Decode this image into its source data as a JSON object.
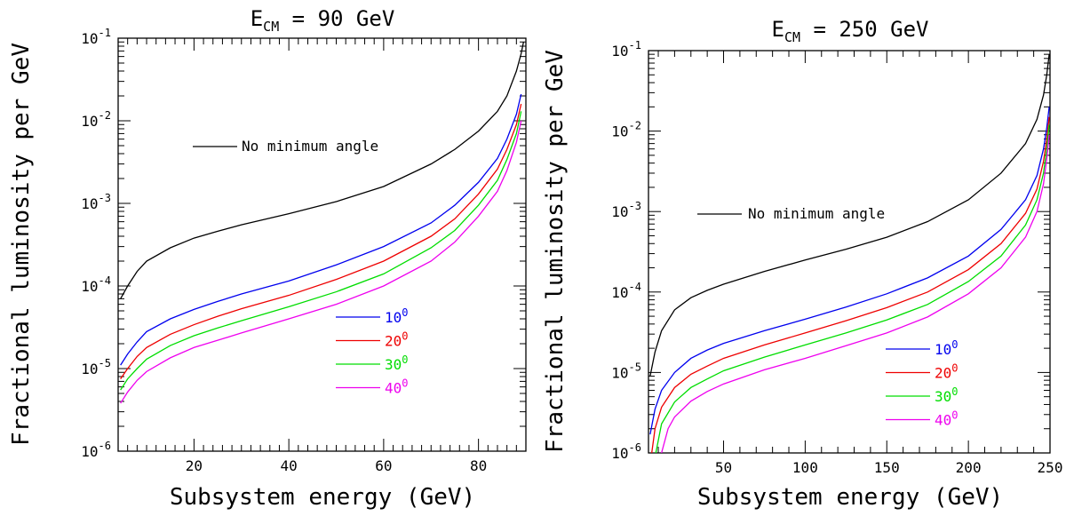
{
  "chart_data": [
    {
      "type": "line",
      "title_main": "E",
      "title_sub": "CM",
      "title_rest": " = 90 GeV",
      "xlabel": "Subsystem energy (GeV)",
      "ylabel": "Fractional luminosity per GeV",
      "xlim": [
        4,
        90
      ],
      "ylim": [
        1e-06,
        0.1
      ],
      "yscale": "log",
      "x_ticks": [
        20,
        40,
        60,
        80
      ],
      "y_ticks": [
        {
          "mantissa": "10",
          "exponent": "-6"
        },
        {
          "mantissa": "10",
          "exponent": "-5"
        },
        {
          "mantissa": "10",
          "exponent": "-4"
        },
        {
          "mantissa": "10",
          "exponent": "-3"
        },
        {
          "mantissa": "10",
          "exponent": "-2"
        },
        {
          "mantissa": "10",
          "exponent": "-1"
        }
      ],
      "legend_position": "lower-center",
      "series": [
        {
          "name": "No minimum angle",
          "color": "#000000",
          "x": [
            4.5,
            6,
            8,
            10,
            15,
            20,
            25,
            30,
            40,
            50,
            60,
            70,
            75,
            80,
            84,
            86,
            88,
            89,
            89.5
          ],
          "y": [
            7e-05,
            0.0001,
            0.00015,
            0.0002,
            0.00029,
            0.00038,
            0.00046,
            0.00055,
            0.00075,
            0.00105,
            0.0016,
            0.003,
            0.0045,
            0.0075,
            0.013,
            0.02,
            0.04,
            0.065,
            0.09
          ]
        },
        {
          "name": "10",
          "superscript": "0",
          "color": "#0000ee",
          "x": [
            4.5,
            6,
            8,
            10,
            15,
            20,
            25,
            30,
            40,
            50,
            60,
            70,
            75,
            80,
            84,
            86,
            88,
            89
          ],
          "y": [
            1.1e-05,
            1.5e-05,
            2.1e-05,
            2.8e-05,
            4e-05,
            5.2e-05,
            6.5e-05,
            8e-05,
            0.000115,
            0.00018,
            0.0003,
            0.00058,
            0.00095,
            0.0018,
            0.0035,
            0.006,
            0.012,
            0.021
          ]
        },
        {
          "name": "20",
          "superscript": "0",
          "color": "#ee0000",
          "x": [
            4.5,
            6,
            8,
            10,
            15,
            20,
            25,
            30,
            40,
            50,
            60,
            70,
            75,
            80,
            84,
            86,
            88,
            89
          ],
          "y": [
            7.5e-06,
            1e-05,
            1.4e-05,
            1.8e-05,
            2.6e-05,
            3.4e-05,
            4.3e-05,
            5.3e-05,
            7.7e-05,
            0.00012,
            0.0002,
            0.0004,
            0.00065,
            0.0013,
            0.0026,
            0.0045,
            0.009,
            0.016
          ]
        },
        {
          "name": "30",
          "superscript": "0",
          "color": "#00dd00",
          "x": [
            4.5,
            6,
            8,
            10,
            15,
            20,
            25,
            30,
            40,
            50,
            60,
            70,
            75,
            80,
            84,
            86,
            88,
            89
          ],
          "y": [
            5.5e-06,
            7.5e-06,
            1e-05,
            1.3e-05,
            1.9e-05,
            2.5e-05,
            3.1e-05,
            3.8e-05,
            5.6e-05,
            8.5e-05,
            0.00014,
            0.00029,
            0.00047,
            0.00095,
            0.0019,
            0.0034,
            0.007,
            0.013
          ]
        },
        {
          "name": "40",
          "superscript": "0",
          "color": "#ee00ee",
          "x": [
            4.5,
            6,
            8,
            10,
            15,
            20,
            25,
            30,
            40,
            50,
            60,
            70,
            75,
            80,
            84,
            86,
            88,
            89
          ],
          "y": [
            3.8e-06,
            5.2e-06,
            7.2e-06,
            9.2e-06,
            1.35e-05,
            1.8e-05,
            2.2e-05,
            2.7e-05,
            4e-05,
            6e-05,
            0.0001,
            0.0002,
            0.00034,
            0.0007,
            0.0014,
            0.0025,
            0.0055,
            0.01
          ]
        }
      ]
    },
    {
      "type": "line",
      "title_main": "E",
      "title_sub": "CM",
      "title_rest": " = 250 GeV",
      "xlabel": "Subsystem energy (GeV)",
      "ylabel": "Fractional luminosity per GeV",
      "xlim": [
        4,
        250
      ],
      "ylim": [
        1e-06,
        0.1
      ],
      "yscale": "log",
      "x_ticks": [
        50,
        100,
        150,
        200,
        250
      ],
      "y_ticks": [
        {
          "mantissa": "10",
          "exponent": "-6"
        },
        {
          "mantissa": "10",
          "exponent": "-5"
        },
        {
          "mantissa": "10",
          "exponent": "-4"
        },
        {
          "mantissa": "10",
          "exponent": "-3"
        },
        {
          "mantissa": "10",
          "exponent": "-2"
        },
        {
          "mantissa": "10",
          "exponent": "-1"
        }
      ],
      "legend_position": "lower-right",
      "series": [
        {
          "name": "No minimum angle",
          "color": "#000000",
          "x": [
            5,
            8,
            12,
            20,
            30,
            40,
            50,
            75,
            100,
            125,
            150,
            175,
            200,
            220,
            235,
            242,
            246,
            248,
            249.5
          ],
          "y": [
            9e-06,
            1.8e-05,
            3.3e-05,
            6e-05,
            8.5e-05,
            0.000105,
            0.000125,
            0.00018,
            0.00025,
            0.00034,
            0.00048,
            0.00075,
            0.0014,
            0.003,
            0.007,
            0.014,
            0.028,
            0.05,
            0.09
          ]
        },
        {
          "name": "10",
          "superscript": "0",
          "color": "#0000ee",
          "x": [
            5,
            8,
            12,
            20,
            30,
            40,
            50,
            75,
            100,
            125,
            150,
            175,
            200,
            220,
            235,
            242,
            246,
            248,
            249.5
          ],
          "y": [
            1.7e-06,
            3.5e-06,
            6e-06,
            1e-05,
            1.5e-05,
            1.9e-05,
            2.3e-05,
            3.3e-05,
            4.6e-05,
            6.5e-05,
            9.5e-05,
            0.00015,
            0.00028,
            0.0006,
            0.0014,
            0.0028,
            0.006,
            0.011,
            0.02
          ]
        },
        {
          "name": "20",
          "superscript": "0",
          "color": "#ee0000",
          "x": [
            6,
            8,
            12,
            20,
            30,
            40,
            50,
            75,
            100,
            125,
            150,
            175,
            200,
            220,
            235,
            242,
            246,
            248,
            249.5
          ],
          "y": [
            1e-06,
            2e-06,
            3.7e-06,
            6.5e-06,
            9.5e-06,
            1.2e-05,
            1.5e-05,
            2.2e-05,
            3.1e-05,
            4.4e-05,
            6.4e-05,
            0.0001,
            0.00019,
            0.0004,
            0.00095,
            0.0019,
            0.0042,
            0.008,
            0.015
          ]
        },
        {
          "name": "30",
          "superscript": "0",
          "color": "#00dd00",
          "x": [
            8.5,
            12,
            20,
            30,
            40,
            50,
            75,
            100,
            125,
            150,
            175,
            200,
            220,
            235,
            242,
            246,
            248,
            249.5
          ],
          "y": [
            1e-06,
            2.3e-06,
            4.3e-06,
            6.5e-06,
            8.3e-06,
            1.05e-05,
            1.55e-05,
            2.2e-05,
            3.1e-05,
            4.5e-05,
            7e-05,
            0.000135,
            0.00028,
            0.00068,
            0.0014,
            0.003,
            0.006,
            0.012
          ]
        },
        {
          "name": "40",
          "superscript": "0",
          "color": "#ee00ee",
          "x": [
            12,
            16,
            20,
            30,
            40,
            50,
            75,
            100,
            125,
            150,
            175,
            200,
            220,
            235,
            242,
            246,
            248,
            249.5
          ],
          "y": [
            1e-06,
            2e-06,
            2.8e-06,
            4.4e-06,
            5.8e-06,
            7.2e-06,
            1.08e-05,
            1.5e-05,
            2.15e-05,
            3.1e-05,
            4.9e-05,
            9.5e-05,
            0.0002,
            0.00048,
            0.001,
            0.0022,
            0.0045,
            0.009
          ]
        }
      ]
    }
  ]
}
